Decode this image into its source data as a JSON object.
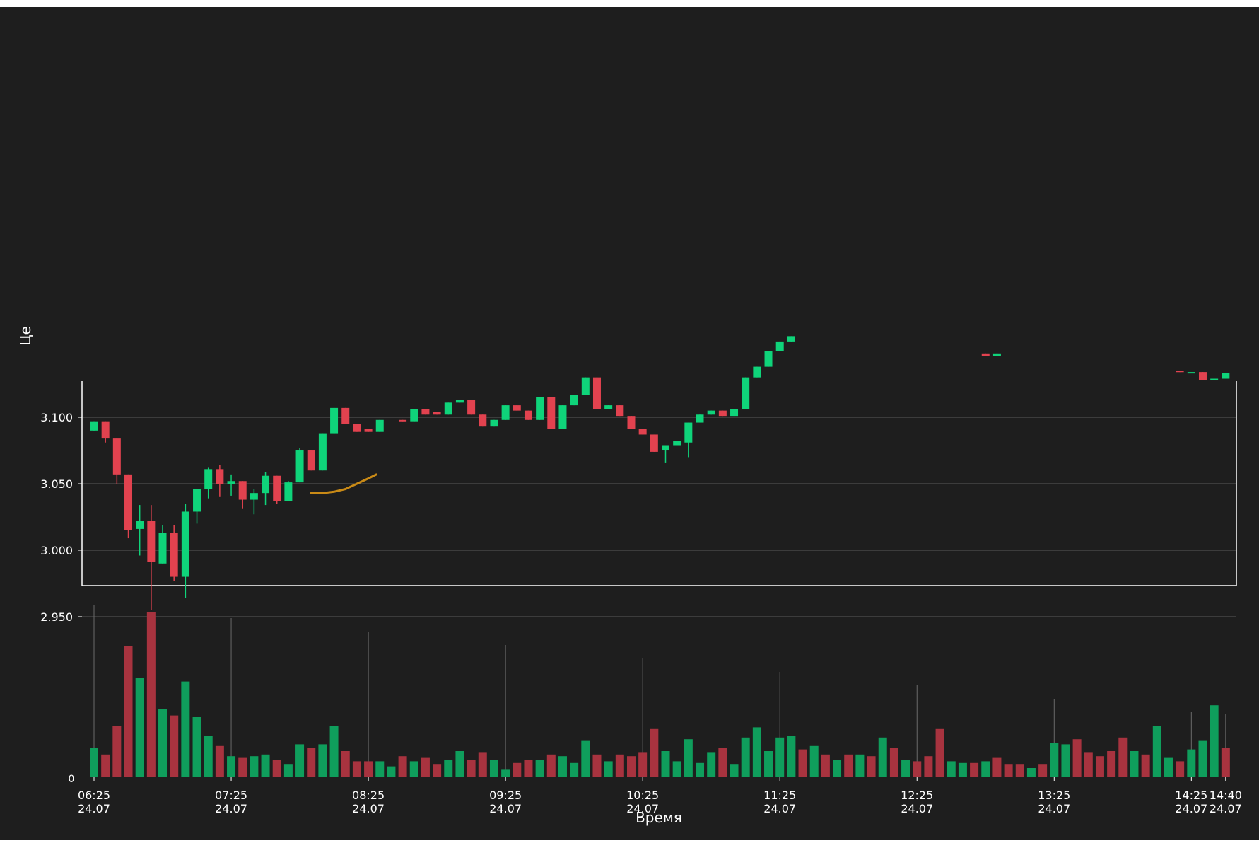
{
  "chart_data": {
    "type": "candlestick",
    "ylabel": "Це",
    "xlabel": "Время",
    "y_ticks": [
      "3.100",
      "3.050",
      "3.000",
      "2.950"
    ],
    "y_tick_values": [
      3.1,
      3.05,
      3.0,
      2.95
    ],
    "ylim": [
      2.942,
      3.216
    ],
    "volume_tick_label": "0",
    "x_ticks": [
      {
        "i": 0,
        "time": "06:25",
        "date": "24.07"
      },
      {
        "i": 12,
        "time": "07:25",
        "date": "24.07"
      },
      {
        "i": 24,
        "time": "08:25",
        "date": "24.07"
      },
      {
        "i": 36,
        "time": "09:25",
        "date": "24.07"
      },
      {
        "i": 48,
        "time": "10:25",
        "date": "24.07"
      },
      {
        "i": 60,
        "time": "11:25",
        "date": "24.07"
      },
      {
        "i": 72,
        "time": "12:25",
        "date": "24.07"
      },
      {
        "i": 84,
        "time": "13:25",
        "date": "24.07"
      },
      {
        "i": 96,
        "time": "14:25",
        "date": "24.07"
      },
      {
        "i": 99,
        "time": "14:40",
        "date": "24.07"
      }
    ],
    "colors": {
      "up": "#0fd47a",
      "down": "#e2424f",
      "vol_up": "#0f9e5c",
      "vol_down": "#a8333f",
      "ma": "#c98a16",
      "grid": "#5a5a5a",
      "text": "#ffffff",
      "frame": "#ffffff"
    },
    "candles": [
      {
        "o": 3.09,
        "h": 3.097,
        "l": 3.09,
        "c": 3.097
      },
      {
        "o": 3.097,
        "h": 3.097,
        "l": 3.081,
        "c": 3.084
      },
      {
        "o": 3.084,
        "h": 3.084,
        "l": 3.05,
        "c": 3.057
      },
      {
        "o": 3.057,
        "h": 3.057,
        "l": 3.009,
        "c": 3.015
      },
      {
        "o": 3.016,
        "h": 3.034,
        "l": 2.996,
        "c": 3.022
      },
      {
        "o": 3.022,
        "h": 3.034,
        "l": 2.955,
        "c": 2.991
      },
      {
        "o": 2.99,
        "h": 3.019,
        "l": 2.99,
        "c": 3.013
      },
      {
        "o": 3.013,
        "h": 3.019,
        "l": 2.977,
        "c": 2.98
      },
      {
        "o": 2.98,
        "h": 3.035,
        "l": 2.964,
        "c": 3.029
      },
      {
        "o": 3.029,
        "h": 3.046,
        "l": 3.02,
        "c": 3.046
      },
      {
        "o": 3.046,
        "h": 3.062,
        "l": 3.039,
        "c": 3.061
      },
      {
        "o": 3.061,
        "h": 3.064,
        "l": 3.04,
        "c": 3.05
      },
      {
        "o": 3.05,
        "h": 3.057,
        "l": 3.041,
        "c": 3.052
      },
      {
        "o": 3.052,
        "h": 3.052,
        "l": 3.031,
        "c": 3.038
      },
      {
        "o": 3.038,
        "h": 3.046,
        "l": 3.027,
        "c": 3.043
      },
      {
        "o": 3.043,
        "h": 3.059,
        "l": 3.034,
        "c": 3.056
      },
      {
        "o": 3.056,
        "h": 3.056,
        "l": 3.035,
        "c": 3.037
      },
      {
        "o": 3.037,
        "h": 3.052,
        "l": 3.037,
        "c": 3.051
      },
      {
        "o": 3.051,
        "h": 3.077,
        "l": 3.051,
        "c": 3.075
      },
      {
        "o": 3.075,
        "h": 3.075,
        "l": 3.06,
        "c": 3.06
      },
      {
        "o": 3.06,
        "h": 3.088,
        "l": 3.06,
        "c": 3.088
      },
      {
        "o": 3.088,
        "h": 3.107,
        "l": 3.088,
        "c": 3.107
      },
      {
        "o": 3.107,
        "h": 3.107,
        "l": 3.095,
        "c": 3.095
      },
      {
        "o": 3.095,
        "h": 3.095,
        "l": 3.089,
        "c": 3.089
      },
      {
        "o": 3.091,
        "h": 3.091,
        "l": 3.089,
        "c": 3.089
      },
      {
        "o": 3.089,
        "h": 3.098,
        "l": 3.089,
        "c": 3.098
      },
      null,
      {
        "o": 3.098,
        "h": 3.098,
        "l": 3.097,
        "c": 3.097
      },
      {
        "o": 3.097,
        "h": 3.106,
        "l": 3.097,
        "c": 3.106
      },
      {
        "o": 3.106,
        "h": 3.106,
        "l": 3.102,
        "c": 3.102
      },
      {
        "o": 3.104,
        "h": 3.104,
        "l": 3.102,
        "c": 3.102
      },
      {
        "o": 3.102,
        "h": 3.111,
        "l": 3.102,
        "c": 3.111
      },
      {
        "o": 3.111,
        "h": 3.113,
        "l": 3.111,
        "c": 3.113
      },
      {
        "o": 3.113,
        "h": 3.113,
        "l": 3.102,
        "c": 3.102
      },
      {
        "o": 3.102,
        "h": 3.102,
        "l": 3.093,
        "c": 3.093
      },
      {
        "o": 3.093,
        "h": 3.098,
        "l": 3.093,
        "c": 3.098
      },
      {
        "o": 3.098,
        "h": 3.109,
        "l": 3.098,
        "c": 3.109
      },
      {
        "o": 3.109,
        "h": 3.109,
        "l": 3.105,
        "c": 3.105
      },
      {
        "o": 3.105,
        "h": 3.105,
        "l": 3.098,
        "c": 3.098
      },
      {
        "o": 3.098,
        "h": 3.115,
        "l": 3.098,
        "c": 3.115
      },
      {
        "o": 3.115,
        "h": 3.115,
        "l": 3.091,
        "c": 3.091
      },
      {
        "o": 3.091,
        "h": 3.109,
        "l": 3.091,
        "c": 3.109
      },
      {
        "o": 3.109,
        "h": 3.117,
        "l": 3.109,
        "c": 3.117
      },
      {
        "o": 3.117,
        "h": 3.13,
        "l": 3.117,
        "c": 3.13
      },
      {
        "o": 3.13,
        "h": 3.13,
        "l": 3.106,
        "c": 3.106
      },
      {
        "o": 3.106,
        "h": 3.109,
        "l": 3.106,
        "c": 3.109
      },
      {
        "o": 3.109,
        "h": 3.109,
        "l": 3.101,
        "c": 3.101
      },
      {
        "o": 3.101,
        "h": 3.101,
        "l": 3.091,
        "c": 3.091
      },
      {
        "o": 3.091,
        "h": 3.091,
        "l": 3.087,
        "c": 3.087
      },
      {
        "o": 3.087,
        "h": 3.087,
        "l": 3.074,
        "c": 3.074
      },
      {
        "o": 3.075,
        "h": 3.079,
        "l": 3.066,
        "c": 3.079
      },
      {
        "o": 3.079,
        "h": 3.082,
        "l": 3.079,
        "c": 3.082
      },
      {
        "o": 3.081,
        "h": 3.096,
        "l": 3.07,
        "c": 3.096
      },
      {
        "o": 3.096,
        "h": 3.102,
        "l": 3.096,
        "c": 3.102
      },
      {
        "o": 3.102,
        "h": 3.105,
        "l": 3.102,
        "c": 3.105
      },
      {
        "o": 3.105,
        "h": 3.105,
        "l": 3.101,
        "c": 3.101
      },
      {
        "o": 3.101,
        "h": 3.106,
        "l": 3.101,
        "c": 3.106
      },
      {
        "o": 3.106,
        "h": 3.13,
        "l": 3.106,
        "c": 3.13
      },
      {
        "o": 3.13,
        "h": 3.138,
        "l": 3.13,
        "c": 3.138
      },
      {
        "o": 3.138,
        "h": 3.15,
        "l": 3.138,
        "c": 3.15
      },
      {
        "o": 3.15,
        "h": 3.157,
        "l": 3.15,
        "c": 3.157
      },
      {
        "o": 3.157,
        "h": 3.161,
        "l": 3.157,
        "c": 3.161
      },
      null,
      null,
      null,
      null,
      null,
      null,
      null,
      null,
      null,
      null,
      null,
      null,
      null,
      null,
      null,
      null,
      {
        "o": 3.148,
        "h": 3.148,
        "l": 3.146,
        "c": 3.146
      },
      {
        "o": 3.146,
        "h": 3.148,
        "l": 3.146,
        "c": 3.148
      },
      null,
      null,
      null,
      null,
      null,
      null,
      null,
      null,
      null,
      null,
      null,
      null,
      null,
      null,
      null,
      {
        "o": 3.135,
        "h": 3.135,
        "l": 3.134,
        "c": 3.134
      },
      {
        "o": 3.134,
        "h": 3.134,
        "l": 3.134,
        "c": 3.134
      },
      {
        "o": 3.134,
        "h": 3.134,
        "l": 3.128,
        "c": 3.128
      },
      {
        "o": 3.128,
        "h": 3.129,
        "l": 3.128,
        "c": 3.129
      },
      {
        "o": 3.129,
        "h": 3.133,
        "l": 3.129,
        "c": 3.133
      },
      null,
      null,
      null,
      null,
      null
    ],
    "ma_series": [
      {
        "i": 19,
        "v": 3.043
      },
      {
        "i": 20,
        "v": 3.043
      },
      {
        "i": 21,
        "v": 3.044
      },
      {
        "i": 22,
        "v": 3.046
      },
      {
        "i": 23,
        "v": 3.05
      },
      {
        "i": 24,
        "v": 3.054
      },
      {
        "i": 24.7,
        "v": 3.057
      }
    ],
    "volume": [
      {
        "d": "up",
        "v": 0.17
      },
      {
        "d": "down",
        "v": 0.13
      },
      {
        "d": "down",
        "v": 0.3
      },
      {
        "d": "down",
        "v": 0.77
      },
      {
        "d": "up",
        "v": 0.58
      },
      {
        "d": "down",
        "v": 0.97
      },
      {
        "d": "up",
        "v": 0.4
      },
      {
        "d": "down",
        "v": 0.36
      },
      {
        "d": "up",
        "v": 0.56
      },
      {
        "d": "up",
        "v": 0.35
      },
      {
        "d": "up",
        "v": 0.24
      },
      {
        "d": "down",
        "v": 0.18
      },
      {
        "d": "up",
        "v": 0.12
      },
      {
        "d": "down",
        "v": 0.11
      },
      {
        "d": "up",
        "v": 0.12
      },
      {
        "d": "up",
        "v": 0.13
      },
      {
        "d": "down",
        "v": 0.1
      },
      {
        "d": "up",
        "v": 0.07
      },
      {
        "d": "up",
        "v": 0.19
      },
      {
        "d": "down",
        "v": 0.17
      },
      {
        "d": "up",
        "v": 0.19
      },
      {
        "d": "up",
        "v": 0.3
      },
      {
        "d": "down",
        "v": 0.15
      },
      {
        "d": "down",
        "v": 0.09
      },
      {
        "d": "down",
        "v": 0.09
      },
      {
        "d": "up",
        "v": 0.09
      },
      {
        "d": "up",
        "v": 0.06
      },
      {
        "d": "down",
        "v": 0.12
      },
      {
        "d": "up",
        "v": 0.09
      },
      {
        "d": "down",
        "v": 0.11
      },
      {
        "d": "down",
        "v": 0.07
      },
      {
        "d": "up",
        "v": 0.1
      },
      {
        "d": "up",
        "v": 0.15
      },
      {
        "d": "down",
        "v": 0.1
      },
      {
        "d": "down",
        "v": 0.14
      },
      {
        "d": "up",
        "v": 0.1
      },
      {
        "d": "up",
        "v": 0.04
      },
      {
        "d": "down",
        "v": 0.08
      },
      {
        "d": "down",
        "v": 0.1
      },
      {
        "d": "up",
        "v": 0.1
      },
      {
        "d": "down",
        "v": 0.13
      },
      {
        "d": "up",
        "v": 0.12
      },
      {
        "d": "up",
        "v": 0.08
      },
      {
        "d": "up",
        "v": 0.21
      },
      {
        "d": "down",
        "v": 0.13
      },
      {
        "d": "up",
        "v": 0.09
      },
      {
        "d": "down",
        "v": 0.13
      },
      {
        "d": "down",
        "v": 0.12
      },
      {
        "d": "down",
        "v": 0.14
      },
      {
        "d": "down",
        "v": 0.28
      },
      {
        "d": "up",
        "v": 0.15
      },
      {
        "d": "up",
        "v": 0.09
      },
      {
        "d": "up",
        "v": 0.22
      },
      {
        "d": "up",
        "v": 0.08
      },
      {
        "d": "up",
        "v": 0.14
      },
      {
        "d": "down",
        "v": 0.17
      },
      {
        "d": "up",
        "v": 0.07
      },
      {
        "d": "up",
        "v": 0.23
      },
      {
        "d": "up",
        "v": 0.29
      },
      {
        "d": "up",
        "v": 0.15
      },
      {
        "d": "up",
        "v": 0.23
      },
      {
        "d": "up",
        "v": 0.24
      },
      {
        "d": "down",
        "v": 0.16
      },
      {
        "d": "up",
        "v": 0.18
      },
      {
        "d": "down",
        "v": 0.13
      },
      {
        "d": "up",
        "v": 0.1
      },
      {
        "d": "down",
        "v": 0.13
      },
      {
        "d": "up",
        "v": 0.13
      },
      {
        "d": "down",
        "v": 0.12
      },
      {
        "d": "up",
        "v": 0.23
      },
      {
        "d": "down",
        "v": 0.17
      },
      {
        "d": "up",
        "v": 0.1
      },
      {
        "d": "down",
        "v": 0.09
      },
      {
        "d": "down",
        "v": 0.12
      },
      {
        "d": "down",
        "v": 0.28
      },
      {
        "d": "up",
        "v": 0.09
      },
      {
        "d": "up",
        "v": 0.08
      },
      {
        "d": "down",
        "v": 0.08
      },
      {
        "d": "up",
        "v": 0.09
      },
      {
        "d": "down",
        "v": 0.11
      },
      {
        "d": "down",
        "v": 0.07
      },
      {
        "d": "down",
        "v": 0.07
      },
      {
        "d": "up",
        "v": 0.05
      },
      {
        "d": "down",
        "v": 0.07
      },
      {
        "d": "up",
        "v": 0.2
      },
      {
        "d": "up",
        "v": 0.19
      },
      {
        "d": "down",
        "v": 0.22
      },
      {
        "d": "down",
        "v": 0.14
      },
      {
        "d": "down",
        "v": 0.12
      },
      {
        "d": "down",
        "v": 0.15
      },
      {
        "d": "down",
        "v": 0.23
      },
      {
        "d": "up",
        "v": 0.15
      },
      {
        "d": "down",
        "v": 0.13
      },
      {
        "d": "up",
        "v": 0.3
      },
      {
        "d": "up",
        "v": 0.11
      },
      {
        "d": "down",
        "v": 0.09
      },
      {
        "d": "up",
        "v": 0.16
      },
      {
        "d": "up",
        "v": 0.21
      },
      {
        "d": "up",
        "v": 0.42
      },
      {
        "d": "down",
        "v": 0.17
      }
    ]
  }
}
